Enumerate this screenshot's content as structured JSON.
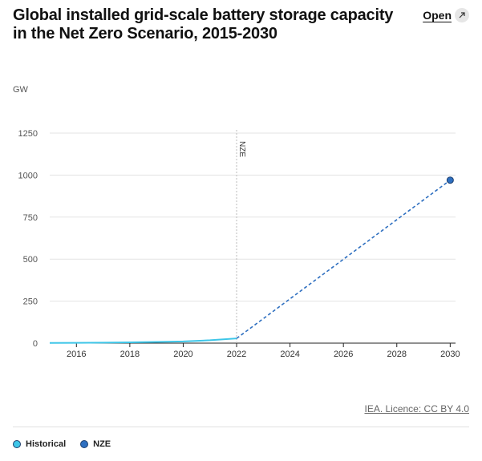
{
  "title": "Global installed grid-scale battery storage capacity in the Net Zero Scenario, 2015-2030",
  "open_label": "Open",
  "open_icon": "external-link-icon",
  "credit": "IEA. Licence: CC BY 4.0",
  "chart_data": {
    "type": "line",
    "title": "Global installed grid-scale battery storage capacity in the Net Zero Scenario, 2015-2030",
    "ylabel": "GW",
    "xlabel": "",
    "xlim": [
      2015,
      2030.2
    ],
    "ylim": [
      0,
      1250
    ],
    "x_ticks": [
      2016,
      2018,
      2020,
      2022,
      2024,
      2026,
      2028,
      2030
    ],
    "x_tick_labels": [
      "2016",
      "2018",
      "2020",
      "2022",
      "2024",
      "2026",
      "2028",
      "2030"
    ],
    "y_ticks": [
      0,
      250,
      500,
      750,
      1000,
      1250
    ],
    "y_tick_labels": [
      "0",
      "250",
      "500",
      "750",
      "1000",
      "1250"
    ],
    "grid": true,
    "legend_position": "bottom-left",
    "series": [
      {
        "name": "Historical",
        "color": "#3ec6e8",
        "style": "solid",
        "x": [
          2015,
          2016,
          2017,
          2018,
          2019,
          2020,
          2021,
          2022
        ],
        "y": [
          1,
          2,
          3,
          5,
          7,
          10,
          17,
          28
        ]
      },
      {
        "name": "NZE",
        "color": "#2e6fc0",
        "style": "dashed",
        "x": [
          2022,
          2030
        ],
        "y": [
          28,
          970
        ]
      }
    ],
    "annotations": [
      {
        "type": "vertical-line",
        "x": 2022,
        "label": "NZE"
      }
    ]
  }
}
